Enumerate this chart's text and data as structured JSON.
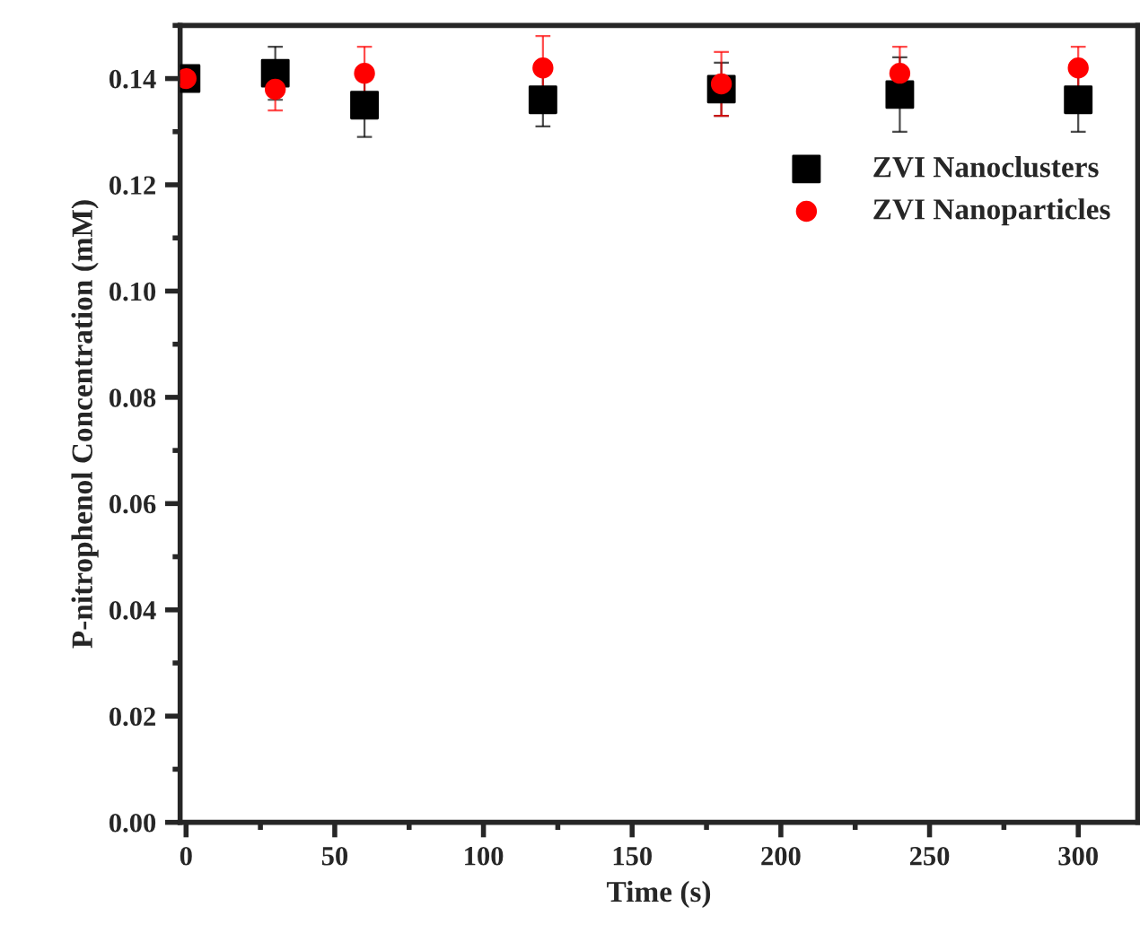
{
  "chart_data": {
    "type": "scatter",
    "xlabel": "Time (s)",
    "ylabel": "P-nitrophenol Concentration (mM)",
    "series": [
      {
        "name": "ZVI Nanoclusters",
        "color": "#000000",
        "marker": "square",
        "x": [
          0,
          30,
          60,
          120,
          180,
          240,
          300
        ],
        "values": [
          0.14,
          0.141,
          0.135,
          0.136,
          0.138,
          0.137,
          0.136
        ],
        "errors": [
          null,
          0.005,
          0.006,
          0.005,
          0.005,
          0.007,
          0.006
        ]
      },
      {
        "name": "ZVI Nanoparticles",
        "color": "#ff0000",
        "marker": "circle",
        "x": [
          0,
          30,
          60,
          120,
          180,
          240,
          300
        ],
        "values": [
          0.14,
          0.138,
          0.141,
          0.142,
          0.139,
          0.141,
          0.142
        ],
        "errors": [
          null,
          0.004,
          0.005,
          0.006,
          0.006,
          0.005,
          0.004
        ]
      }
    ],
    "xlim": [
      -2,
      320
    ],
    "xticks": [
      0,
      50,
      100,
      150,
      200,
      250,
      300
    ],
    "ylim": [
      0,
      0.15
    ],
    "yticks": [
      {
        "value": 0,
        "label": "0.00"
      },
      {
        "value": 0.02,
        "label": "0.02"
      },
      {
        "value": 0.04,
        "label": "0.04"
      },
      {
        "value": 0.06,
        "label": "0.06"
      },
      {
        "value": 0.08,
        "label": "0.08"
      },
      {
        "value": 0.1,
        "label": "0.10"
      },
      {
        "value": 0.12,
        "label": "0.12"
      },
      {
        "value": 0.14,
        "label": "0.14"
      }
    ],
    "grid": false,
    "legend": "top right"
  }
}
